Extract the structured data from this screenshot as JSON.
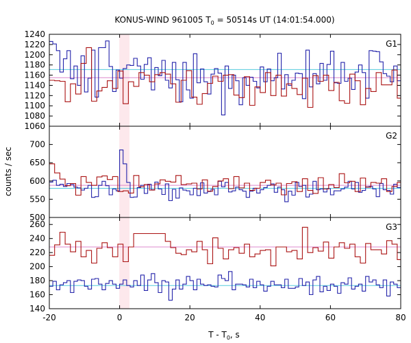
{
  "chart_data": {
    "type": "line",
    "title_main": "KONUS-WIND 961005 T",
    "title_sub": "0",
    "title_rest": " = 50514s UT (14:01:54.000)",
    "xlabel_main": "T - T",
    "xlabel_sub": "0",
    "xlabel_rest": ", s",
    "ylabel": "counts / sec",
    "xlim": [
      -20,
      80
    ],
    "x_ticks": [
      "-20",
      "0",
      "20",
      "40",
      "60",
      "80"
    ],
    "x_tick_values": [
      -20,
      0,
      20,
      40,
      60,
      80
    ],
    "highlight_interval": [
      -0.1,
      2.8
    ],
    "panels": [
      {
        "name": "G1",
        "ylim": [
          1060,
          1240
        ],
        "y_ticks": [
          "1060",
          "1080",
          "1100",
          "1120",
          "1140",
          "1160",
          "1180",
          "1200",
          "1220",
          "1240"
        ],
        "y_tick_values": [
          1060,
          1080,
          1100,
          1120,
          1140,
          1160,
          1180,
          1200,
          1220,
          1240
        ],
        "background_levels": [
          {
            "color": "#55ccdd",
            "value": 1171
          },
          {
            "color": "#dd88cc",
            "value": 1155
          }
        ],
        "series": [
          {
            "color": "#2222aa",
            "bin_width": 1.0,
            "x0": -20,
            "values": [
              1226,
              1221,
              1208,
              1166,
              1192,
              1208,
              1153,
              1178,
              1140,
              1198,
              1127,
              1154,
              1209,
              1117,
              1214,
              1214,
              1227,
              1177,
              1128,
              1170,
              1154,
              1173,
              1180,
              1179,
              1193,
              1178,
              1152,
              1181,
              1194,
              1131,
              1175,
              1159,
              1189,
              1150,
              1135,
              1185,
              1151,
              1108,
              1185,
              1131,
              1115,
              1202,
              1145,
              1172,
              1147,
              1123,
              1162,
              1173,
              1164,
              1082,
              1178,
              1134,
              1160,
              1149,
              1102,
              1155,
              1140,
              1156,
              1148,
              1135,
              1176,
              1147,
              1172,
              1149,
              1155,
              1203,
              1133,
              1161,
              1140,
              1150,
              1164,
              1163,
              1114,
              1209,
              1137,
              1163,
              1143,
              1183,
              1150,
              1181,
              1207,
              1145,
              1144,
              1185,
              1148,
              1154,
              1132,
              1166,
              1180,
              1165,
              1115,
              1208,
              1207,
              1206,
              1186,
              1163,
              1158,
              1147,
              1178,
              1149
            ]
          },
          {
            "color": "#aa1111",
            "bin_width": 1.5,
            "x0": -20,
            "values": [
              1150,
              1149,
              1148,
              1108,
              1143,
              1123,
              1183,
              1214,
              1109,
              1129,
              1136,
              1149,
              1134,
              1168,
              1104,
              1147,
              1138,
              1165,
              1160,
              1147,
              1161,
              1165,
              1162,
              1143,
              1107,
              1150,
              1169,
              1117,
              1103,
              1124,
              1144,
              1158,
              1148,
              1160,
              1161,
              1121,
              1116,
              1157,
              1101,
              1137,
              1126,
              1165,
              1120,
              1160,
              1119,
              1143,
              1134,
              1122,
              1154,
              1097,
              1159,
              1148,
              1160,
              1130,
              1146,
              1110,
              1105,
              1162,
              1149,
              1102,
              1134,
              1128,
              1165,
              1141,
              1141,
              1170,
              1115
            ]
          }
        ]
      },
      {
        "name": "G2",
        "ylim": [
          500,
          750
        ],
        "y_ticks": [
          "500",
          "550",
          "600",
          "650",
          "700"
        ],
        "y_tick_values": [
          500,
          550,
          600,
          650,
          700
        ],
        "background_levels": [
          {
            "color": "#55ccdd",
            "value": 580
          },
          {
            "color": "#dd88cc",
            "value": 588
          }
        ],
        "series": [
          {
            "color": "#2222aa",
            "bin_width": 1.0,
            "x0": -20,
            "values": [
              597,
              602,
              588,
              591,
              585,
              593,
              590,
              583,
              581,
              575,
              580,
              588,
              555,
              557,
              588,
              599,
              587,
              562,
              578,
              573,
              685,
              647,
              596,
              555,
              556,
              582,
              588,
              566,
              591,
              576,
              597,
              578,
              563,
              592,
              546,
              577,
              553,
              581,
              575,
              573,
              562,
              580,
              560,
              595,
              567,
              571,
              577,
              562,
              599,
              584,
              596,
              570,
              573,
              583,
              576,
              572,
              555,
              572,
              580,
              567,
              576,
              582,
              588,
              592,
              569,
              583,
              576,
              543,
              572,
              561,
              596,
              585,
              588,
              556,
              564,
              599,
              576,
              578,
              570,
              579,
              562,
              573,
              573,
              578,
              583,
              599,
              578,
              596,
              569,
              574,
              584,
              585,
              578,
              557,
              593,
              576,
              574,
              564,
              591,
              582
            ]
          },
          {
            "color": "#aa1111",
            "bin_width": 1.5,
            "x0": -20,
            "values": [
              647,
              622,
              605,
              587,
              593,
              561,
              612,
              596,
              588,
              611,
              614,
              604,
              612,
              571,
              573,
              567,
              615,
              584,
              590,
              575,
              592,
              603,
              599,
              597,
              615,
              590,
              592,
              594,
              578,
              603,
              572,
              585,
              600,
              606,
              579,
              612,
              581,
              594,
              574,
              580,
              596,
              602,
              589,
              594,
              562,
              593,
              598,
              571,
              606,
              574,
              566,
              609,
              578,
              590,
              582,
              620,
              595,
              599,
              571,
              608,
              583,
              596,
              594,
              606,
              571,
              585,
              596
            ]
          }
        ]
      },
      {
        "name": "G3",
        "ylim": [
          140,
          270
        ],
        "y_ticks": [
          "140",
          "160",
          "180",
          "200",
          "220",
          "240",
          "260"
        ],
        "y_tick_values": [
          140,
          160,
          180,
          200,
          220,
          240,
          260
        ],
        "background_levels": [
          {
            "color": "#55ccdd",
            "value": 173
          },
          {
            "color": "#dd88cc",
            "value": 228
          }
        ],
        "series": [
          {
            "color": "#2222aa",
            "bin_width": 1.0,
            "x0": -20,
            "values": [
              172,
              179,
              167,
              174,
              177,
              180,
              163,
              179,
              181,
              180,
              172,
              168,
              182,
              183,
              175,
              167,
              176,
              180,
              175,
              169,
              175,
              181,
              173,
              171,
              180,
              173,
              188,
              166,
              181,
              190,
              177,
              163,
              180,
              178,
              152,
              168,
              181,
              168,
              175,
              186,
              180,
              167,
              182,
              175,
              173,
              174,
              172,
              171,
              188,
              183,
              180,
              193,
              167,
              175,
              175,
              174,
              171,
              182,
              170,
              179,
              174,
              165,
              172,
              179,
              174,
              174,
              170,
              182,
              169,
              169,
              171,
              183,
              173,
              178,
              160,
              181,
              186,
              164,
              172,
              166,
              175,
              172,
              162,
              177,
              175,
              184,
              168,
              172,
              175,
              165,
              186,
              178,
              181,
              174,
              170,
              181,
              158,
              178,
              175,
              170
            ]
          },
          {
            "color": "#aa1111",
            "bin_width": 1.5,
            "x0": -20,
            "values": [
              216,
              231,
              249,
              232,
              221,
              236,
              214,
              223,
              205,
              226,
              234,
              227,
              214,
              232,
              207,
              228,
              247,
              247,
              247,
              247,
              247,
              247,
              236,
              227,
              219,
              217,
              224,
              221,
              236,
              224,
              204,
              241,
              226,
              211,
              224,
              227,
              219,
              232,
              214,
              218,
              223,
              224,
              201,
              228,
              228,
              221,
              223,
              211,
              256,
              220,
              227,
              222,
              235,
              212,
              228,
              234,
              226,
              232,
              214,
              205,
              233,
              224,
              224,
              218,
              237,
              232,
              210
            ]
          }
        ]
      }
    ]
  }
}
